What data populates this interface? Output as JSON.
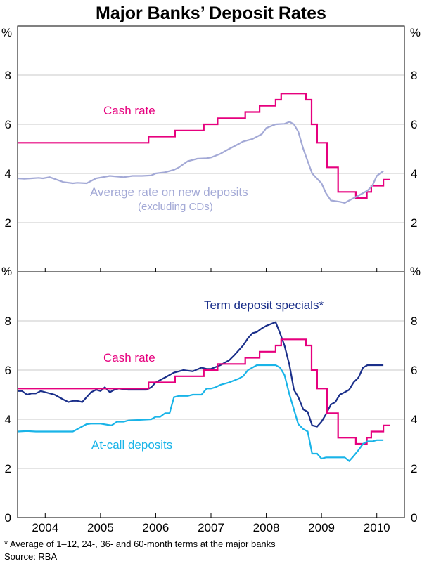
{
  "chart_data": {
    "type": "line",
    "title": "Major Banks’ Deposit Rates",
    "unit_label": "%",
    "x_tick_labels": [
      "2004",
      "2005",
      "2006",
      "2007",
      "2008",
      "2009",
      "2010"
    ],
    "x_range": [
      2003.5,
      2010.5
    ],
    "footnote": "*    Average of 1–12, 24-, 36- and 60-month terms at the major banks",
    "source": "Source: RBA",
    "panels": [
      {
        "name": "top",
        "ylim": [
          0,
          10
        ],
        "yticks": [
          2,
          4,
          6,
          8
        ],
        "series": [
          {
            "name": "Cash rate",
            "color": "#e6007e",
            "step": true,
            "x": [
              2003.5,
              2004.92,
              2005.87,
              2006.04,
              2006.35,
              2006.87,
              2007.12,
              2007.35,
              2007.62,
              2007.88,
              2008.17,
              2008.27,
              2008.38,
              2008.55,
              2008.72,
              2008.82,
              2008.92,
              2009.1,
              2009.3,
              2009.62,
              2009.72,
              2009.82,
              2009.9,
              2010.12
            ],
            "values": [
              5.25,
              5.25,
              5.5,
              5.5,
              5.75,
              6.0,
              6.25,
              6.25,
              6.5,
              6.75,
              7.0,
              7.25,
              7.25,
              7.25,
              7.0,
              6.0,
              5.25,
              4.25,
              3.25,
              3.0,
              3.0,
              3.25,
              3.5,
              3.75
            ]
          },
          {
            "name": "Average rate on new deposits (excluding CDs)",
            "color": "#a3a9d6",
            "step": false,
            "x": [
              2003.5,
              2003.62,
              2003.75,
              2003.88,
              2003.96,
              2004.08,
              2004.33,
              2004.5,
              2004.58,
              2004.75,
              2004.92,
              2005.17,
              2005.42,
              2005.58,
              2005.75,
              2005.92,
              2006.0,
              2006.17,
              2006.33,
              2006.42,
              2006.58,
              2006.75,
              2006.92,
              2007.0,
              2007.17,
              2007.33,
              2007.5,
              2007.58,
              2007.75,
              2007.92,
              2008.0,
              2008.17,
              2008.33,
              2008.42,
              2008.5,
              2008.58,
              2008.67,
              2008.75,
              2008.83,
              2009.0,
              2009.08,
              2009.17,
              2009.33,
              2009.42,
              2009.5,
              2009.67,
              2009.75,
              2009.83,
              2009.92,
              2010.0,
              2010.12
            ],
            "values": [
              3.8,
              3.78,
              3.8,
              3.82,
              3.8,
              3.85,
              3.65,
              3.6,
              3.62,
              3.6,
              3.8,
              3.9,
              3.85,
              3.9,
              3.9,
              3.92,
              4.0,
              4.05,
              4.15,
              4.25,
              4.5,
              4.6,
              4.62,
              4.65,
              4.8,
              5.0,
              5.2,
              5.3,
              5.4,
              5.6,
              5.85,
              6.0,
              6.02,
              6.1,
              6.0,
              5.7,
              5.0,
              4.5,
              4.0,
              3.6,
              3.2,
              2.9,
              2.85,
              2.8,
              2.9,
              3.1,
              3.2,
              3.3,
              3.5,
              3.9,
              4.1
            ]
          }
        ],
        "annotations": [
          {
            "text": "Cash rate",
            "color": "#e6007e"
          },
          {
            "text": "Average rate on new deposits",
            "color": "#a3a9d6"
          },
          {
            "text": "(excluding CDs)",
            "color": "#a3a9d6"
          }
        ]
      },
      {
        "name": "bottom",
        "ylim": [
          0,
          10
        ],
        "yticks": [
          0,
          2,
          4,
          6,
          8
        ],
        "series": [
          {
            "name": "Term deposit specials*",
            "color": "#1a2f8a",
            "step": false,
            "x": [
              2003.5,
              2003.58,
              2003.67,
              2003.75,
              2003.83,
              2003.92,
              2004.0,
              2004.17,
              2004.33,
              2004.42,
              2004.5,
              2004.58,
              2004.67,
              2004.75,
              2004.83,
              2004.92,
              2005.0,
              2005.08,
              2005.17,
              2005.25,
              2005.33,
              2005.5,
              2005.67,
              2005.83,
              2005.92,
              2006.0,
              2006.17,
              2006.33,
              2006.42,
              2006.5,
              2006.67,
              2006.83,
              2006.92,
              2007.0,
              2007.17,
              2007.25,
              2007.33,
              2007.42,
              2007.5,
              2007.58,
              2007.67,
              2007.75,
              2007.83,
              2007.92,
              2008.0,
              2008.17,
              2008.25,
              2008.33,
              2008.42,
              2008.5,
              2008.58,
              2008.67,
              2008.75,
              2008.83,
              2008.92,
              2009.0,
              2009.08,
              2009.17,
              2009.25,
              2009.33,
              2009.42,
              2009.5,
              2009.58,
              2009.67,
              2009.75,
              2009.83,
              2009.92,
              2010.0,
              2010.12
            ],
            "values": [
              5.15,
              5.15,
              5.0,
              5.05,
              5.05,
              5.15,
              5.1,
              5.0,
              4.8,
              4.7,
              4.75,
              4.75,
              4.7,
              4.9,
              5.1,
              5.2,
              5.15,
              5.3,
              5.1,
              5.2,
              5.25,
              5.2,
              5.2,
              5.2,
              5.3,
              5.5,
              5.7,
              5.9,
              5.95,
              6.0,
              5.95,
              6.1,
              6.05,
              6.05,
              6.2,
              6.3,
              6.4,
              6.6,
              6.8,
              7.0,
              7.3,
              7.5,
              7.55,
              7.7,
              7.8,
              7.95,
              7.5,
              7.0,
              6.2,
              5.2,
              4.9,
              4.4,
              4.3,
              3.75,
              3.7,
              3.9,
              4.2,
              4.6,
              4.7,
              5.0,
              5.1,
              5.2,
              5.5,
              5.7,
              6.1,
              6.2,
              6.2,
              6.2,
              6.2
            ]
          },
          {
            "name": "Cash rate",
            "color": "#e6007e",
            "step": true,
            "x": [
              2003.5,
              2004.92,
              2005.87,
              2006.04,
              2006.35,
              2006.87,
              2007.12,
              2007.35,
              2007.62,
              2007.88,
              2008.17,
              2008.27,
              2008.38,
              2008.55,
              2008.72,
              2008.82,
              2008.92,
              2009.1,
              2009.3,
              2009.62,
              2009.72,
              2009.82,
              2009.9,
              2010.12
            ],
            "values": [
              5.25,
              5.25,
              5.5,
              5.5,
              5.75,
              6.0,
              6.25,
              6.25,
              6.5,
              6.75,
              7.0,
              7.25,
              7.25,
              7.25,
              7.0,
              6.0,
              5.25,
              4.25,
              3.25,
              3.0,
              3.0,
              3.25,
              3.5,
              3.75
            ]
          },
          {
            "name": "At-call deposits",
            "color": "#19b4e8",
            "step": false,
            "x": [
              2003.5,
              2003.67,
              2003.83,
              2004.0,
              2004.5,
              2004.75,
              2004.83,
              2005.0,
              2005.2,
              2005.3,
              2005.42,
              2005.5,
              2005.92,
              2006.0,
              2006.08,
              2006.17,
              2006.25,
              2006.33,
              2006.42,
              2006.5,
              2006.58,
              2006.67,
              2006.83,
              2006.92,
              2007.0,
              2007.08,
              2007.17,
              2007.25,
              2007.33,
              2007.5,
              2007.58,
              2007.67,
              2007.83,
              2007.92,
              2008.0,
              2008.17,
              2008.25,
              2008.33,
              2008.42,
              2008.5,
              2008.58,
              2008.67,
              2008.75,
              2008.83,
              2008.92,
              2009.0,
              2009.08,
              2009.17,
              2009.33,
              2009.42,
              2009.5,
              2009.58,
              2009.67,
              2009.75,
              2009.83,
              2009.92,
              2010.0,
              2010.12
            ],
            "values": [
              3.5,
              3.52,
              3.5,
              3.5,
              3.5,
              3.8,
              3.82,
              3.82,
              3.75,
              3.9,
              3.9,
              3.95,
              4.0,
              4.1,
              4.1,
              4.25,
              4.25,
              4.9,
              4.95,
              4.95,
              4.95,
              5.0,
              5.0,
              5.25,
              5.25,
              5.3,
              5.4,
              5.45,
              5.5,
              5.65,
              5.75,
              6.0,
              6.2,
              6.2,
              6.2,
              6.2,
              6.1,
              5.8,
              5.0,
              4.4,
              3.8,
              3.6,
              3.5,
              2.6,
              2.6,
              2.4,
              2.45,
              2.45,
              2.45,
              2.45,
              2.3,
              2.5,
              2.75,
              3.0,
              3.1,
              3.1,
              3.15,
              3.15
            ]
          }
        ],
        "annotations": [
          {
            "text": "Term deposit specials*",
            "color": "#1a2f8a"
          },
          {
            "text": "Cash rate",
            "color": "#e6007e"
          },
          {
            "text": "At-call deposits",
            "color": "#19b4e8"
          }
        ]
      }
    ]
  }
}
